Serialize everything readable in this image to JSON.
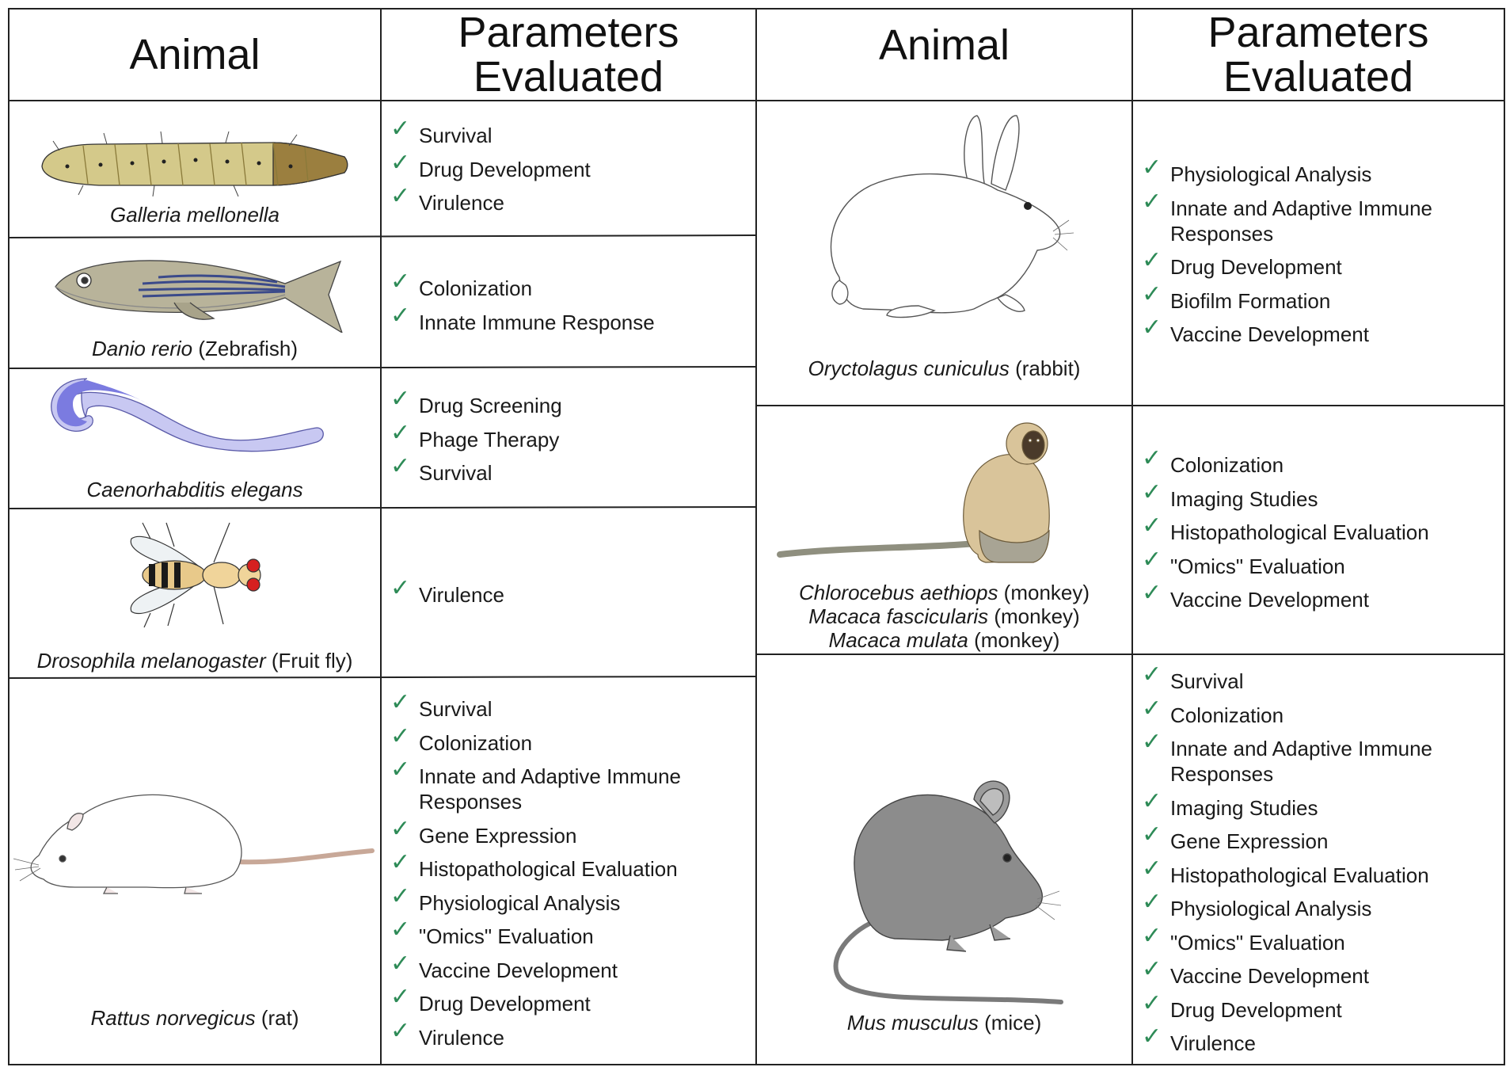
{
  "headers": {
    "left_animal": "Animal",
    "left_params_line1": "Parameters",
    "left_params_line2": "Evaluated",
    "right_animal": "Animal",
    "right_params_line1": "Parameters",
    "right_params_line2": "Evaluated"
  },
  "check_glyph": "✓",
  "check_color": "#2e8b57",
  "rows": {
    "galleria": {
      "species": "Galleria mellonella",
      "common": "",
      "icon": "galleria-larva-icon",
      "params": [
        "Survival",
        "Drug Development",
        "Virulence"
      ]
    },
    "danio": {
      "species": "Danio rerio",
      "common": " (Zebrafish)",
      "icon": "zebrafish-icon",
      "params": [
        "Colonization",
        "Innate Immune Response"
      ]
    },
    "celegans": {
      "species": "Caenorhabditis elegans",
      "common": "",
      "icon": "nematode-icon",
      "params": [
        "Drug Screening",
        "Phage Therapy",
        "Survival"
      ]
    },
    "drosophila": {
      "species": "Drosophila melanogaster",
      "common": " (Fruit fly)",
      "icon": "fruit-fly-icon",
      "params": [
        "Virulence"
      ]
    },
    "rattus": {
      "species": "Rattus norvegicus",
      "common": " (rat)",
      "icon": "rat-icon",
      "params": [
        "Survival",
        "Colonization",
        "Innate and Adaptive Immune",
        "Responses",
        "Gene Expression",
        "Histopathological Evaluation",
        "Physiological Analysis",
        "\"Omics\" Evaluation",
        "Vaccine Development",
        "Drug Development",
        "Virulence"
      ]
    },
    "oryctolagus": {
      "species": "Oryctolagus cuniculus",
      "common": " (rabbit)",
      "icon": "rabbit-icon",
      "params": [
        "Physiological Analysis",
        "Innate and Adaptive Immune",
        "Responses",
        "Drug Development",
        "Biofilm Formation",
        "Vaccine Development"
      ]
    },
    "monkey": {
      "species1": "Chlorocebus aethiops",
      "common1": " (monkey)",
      "species2": "Macaca fascicularis",
      "common2": " (monkey)",
      "species3": "Macaca mulata",
      "common3": " (monkey)",
      "icon": "monkey-icon",
      "params": [
        "Colonization",
        "Imaging Studies",
        "Histopathological Evaluation",
        "\"Omics\" Evaluation",
        "Vaccine Development"
      ]
    },
    "mus": {
      "species": "Mus musculus",
      "common": " (mice)",
      "icon": "mouse-icon",
      "params": [
        "Survival",
        "Colonization",
        "Innate and Adaptive Immune",
        "Responses",
        "Imaging Studies",
        "Gene Expression",
        "Histopathological Evaluation",
        "Physiological Analysis",
        "\"Omics\" Evaluation",
        "Vaccine Development",
        "Drug Development",
        "Virulence"
      ]
    }
  }
}
